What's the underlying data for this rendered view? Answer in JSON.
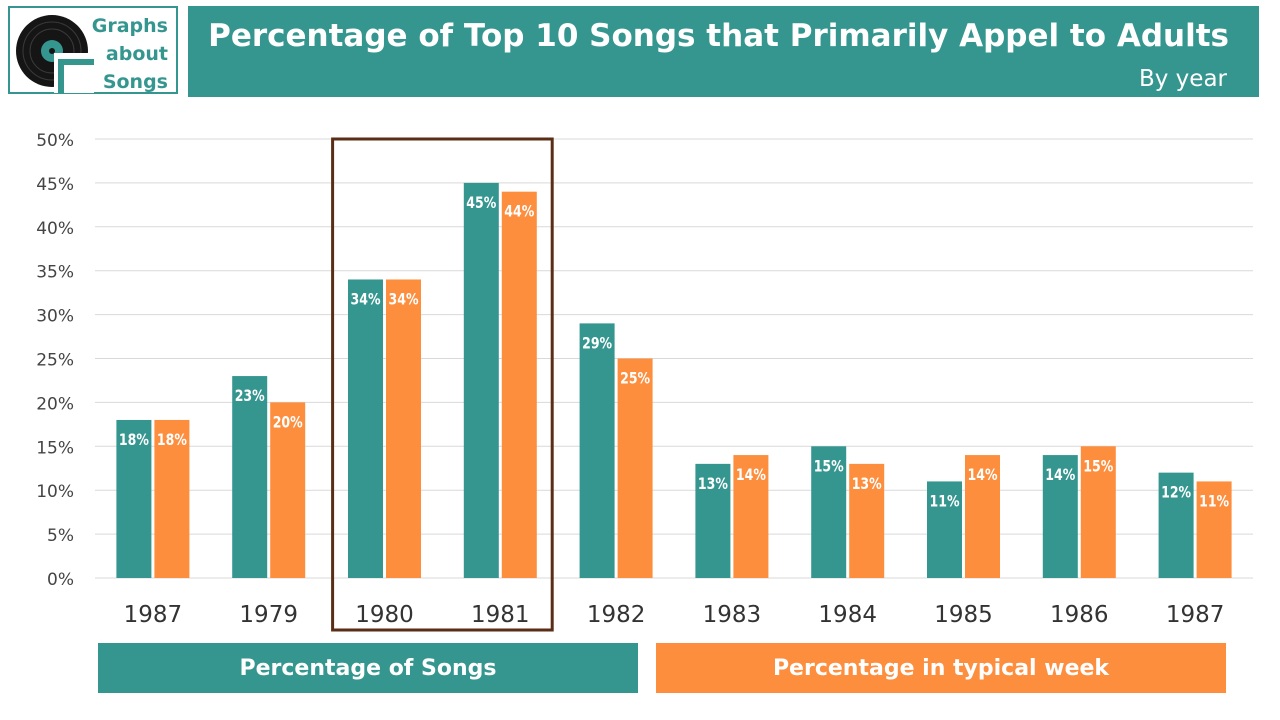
{
  "logo": {
    "lines": [
      "Graphs",
      "about",
      "Songs"
    ]
  },
  "header": {
    "title": "Percentage of Top 10 Songs that Primarily Appel to Adults",
    "subtitle": "By year"
  },
  "colors": {
    "teal": "#359690",
    "orange": "#fd8e3e",
    "highlight": "#5a2e16",
    "grid": "#d9d9d9"
  },
  "chart_data": {
    "type": "bar",
    "categories": [
      "1987",
      "1979",
      "1980",
      "1981",
      "1982",
      "1983",
      "1984",
      "1985",
      "1986",
      "1987"
    ],
    "series": [
      {
        "name": "Percentage of Songs",
        "color": "#359690",
        "values": [
          18,
          23,
          34,
          45,
          29,
          13,
          15,
          11,
          14,
          12
        ],
        "labels": [
          "18%",
          "23%",
          "34%",
          "45%",
          "29%",
          "13%",
          "15%",
          "11%",
          "14%",
          "12%"
        ]
      },
      {
        "name": "Percentage in typical week",
        "color": "#fd8e3e",
        "values": [
          18,
          20,
          34,
          44,
          25,
          14,
          13,
          14,
          15,
          11
        ],
        "labels": [
          "18%",
          "20%",
          "34%",
          "44%",
          "25%",
          "14%",
          "13%",
          "14%",
          "15%",
          "11%"
        ]
      }
    ],
    "ylim": [
      0,
      50
    ],
    "yticks": [
      "0%",
      "5%",
      "10%",
      "15%",
      "20%",
      "25%",
      "30%",
      "35%",
      "40%",
      "45%",
      "50%"
    ],
    "grid": true,
    "legend_position": "bottom",
    "highlighted_categories": [
      "1980",
      "1981"
    ]
  }
}
